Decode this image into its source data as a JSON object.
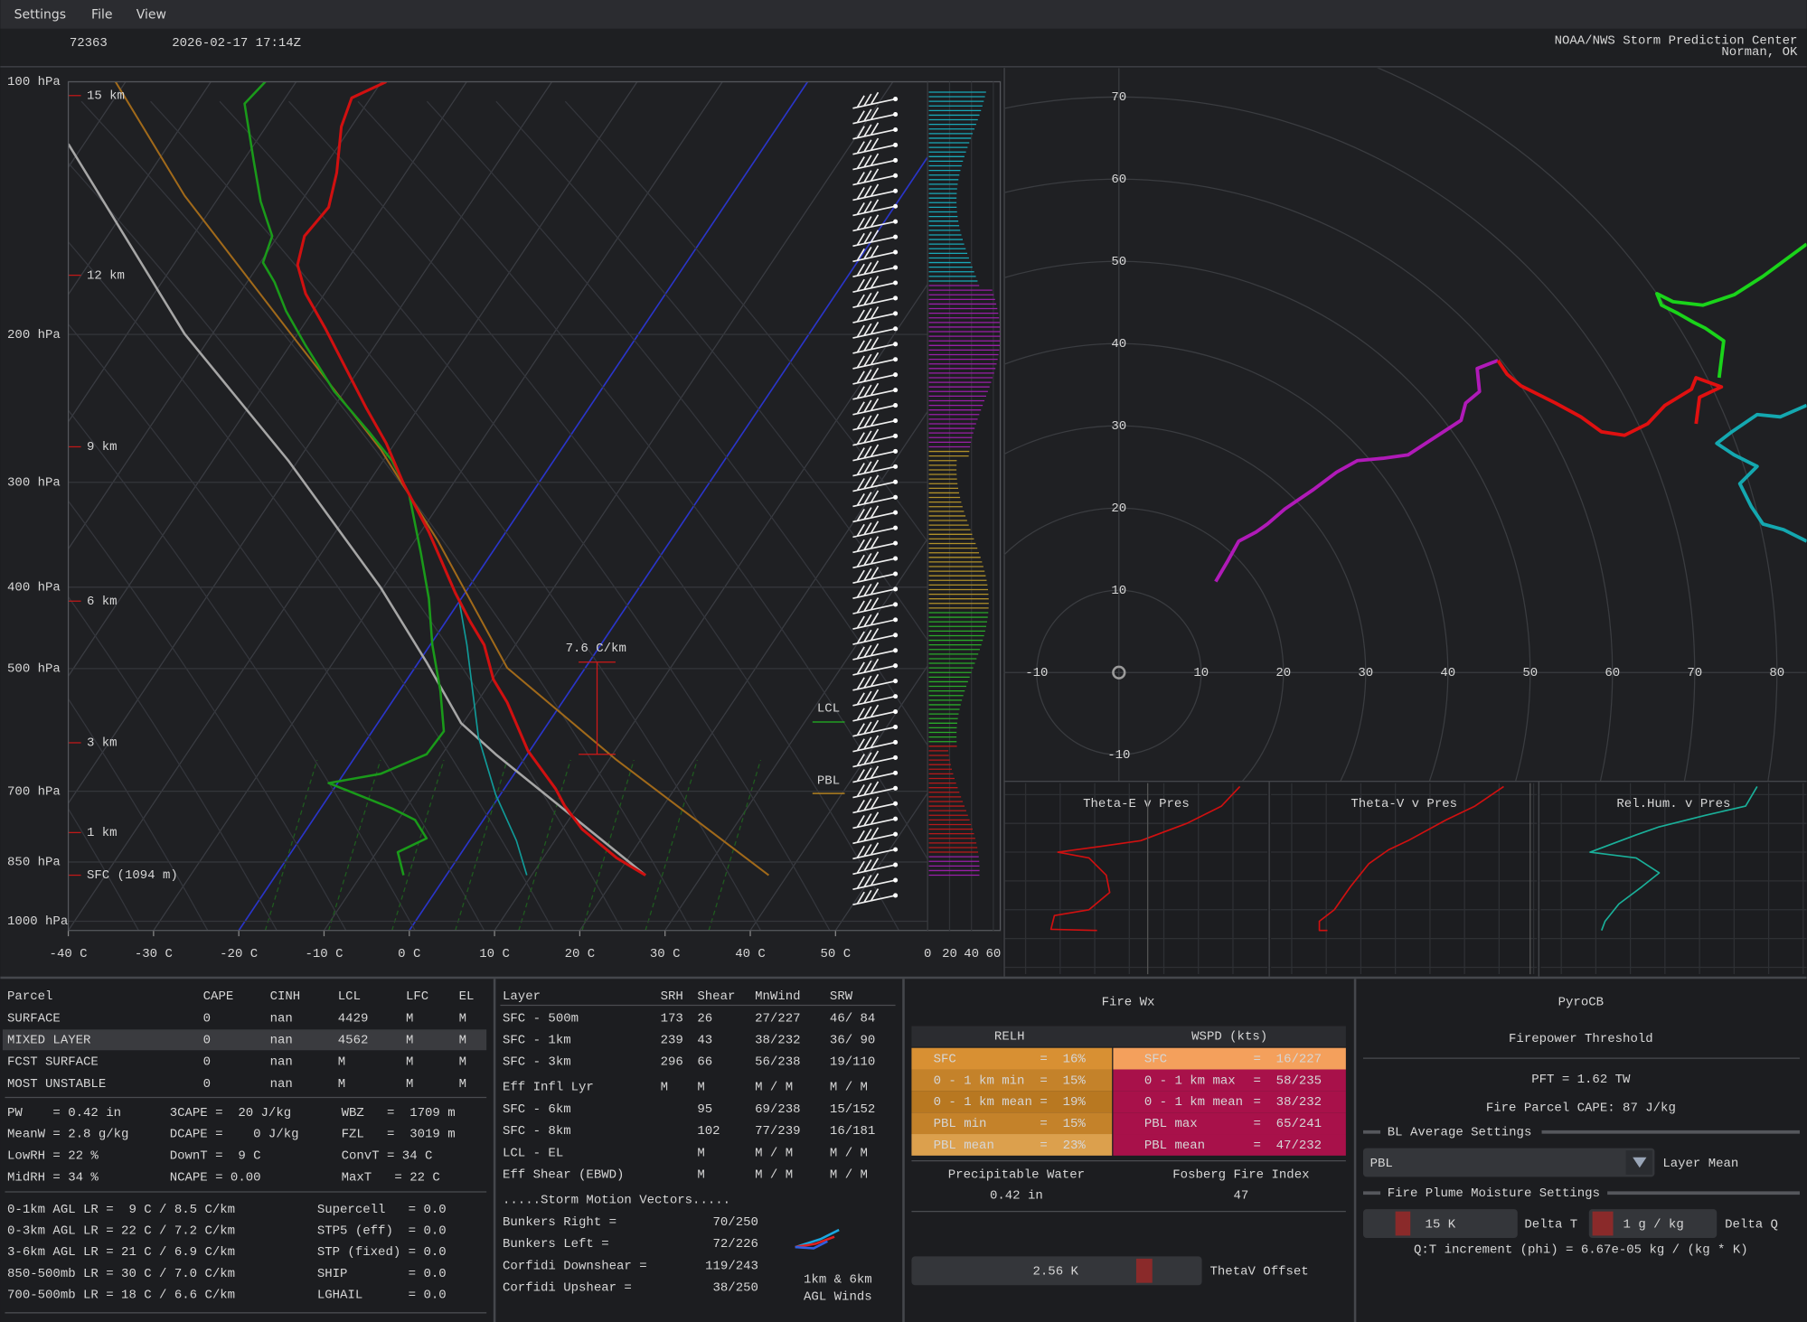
{
  "menu": [
    "Settings",
    "File",
    "View"
  ],
  "header": {
    "station": "72363",
    "time": "2026-02-17 17:14Z",
    "source": "NOAA/NWS Storm Prediction Center",
    "location": "Norman, OK"
  },
  "skewt": {
    "pressure_ticks": [
      {
        "value": 100,
        "label": "100 hPa"
      },
      {
        "value": 200,
        "label": "200 hPa"
      },
      {
        "value": 300,
        "label": "300 hPa"
      },
      {
        "value": 400,
        "label": "400 hPa"
      },
      {
        "value": 500,
        "label": "500 hPa"
      },
      {
        "value": 700,
        "label": "700 hPa"
      },
      {
        "value": 850,
        "label": "850 hPa"
      },
      {
        "value": 1000,
        "label": "1000 hPa"
      }
    ],
    "temp_ticks": [
      {
        "value": -40,
        "label": "-40 C"
      },
      {
        "value": -30,
        "label": "-30 C"
      },
      {
        "value": -20,
        "label": "-20 C"
      },
      {
        "value": -10,
        "label": "-10 C"
      },
      {
        "value": 0,
        "label": "0 C"
      },
      {
        "value": 10,
        "label": "10 C"
      },
      {
        "value": 20,
        "label": "20 C"
      },
      {
        "value": 30,
        "label": "30 C"
      },
      {
        "value": 40,
        "label": "40 C"
      },
      {
        "value": 50,
        "label": "50 C"
      }
    ],
    "height_labels": [
      "15 km",
      "12 km",
      "9 km",
      "6 km",
      "3 km",
      "1 km",
      "SFC (1094 m)"
    ],
    "lapse_rate_label": "7.6 C/km",
    "lcl_label": "LCL",
    "pbl_label": "PBL",
    "inset_ticks": [
      0,
      20,
      40,
      60
    ]
  },
  "hodograph": {
    "xticks": [
      -10,
      10,
      20,
      30,
      40,
      50,
      60,
      70,
      80
    ],
    "yticks": [
      70,
      60,
      50,
      40,
      30,
      20,
      10,
      -10
    ]
  },
  "profiles": [
    "Theta-E v Pres",
    "Theta-V v Pres",
    "Rel.Hum. v Pres"
  ],
  "parcel_table": {
    "header": [
      "Parcel",
      "CAPE",
      "CINH",
      "LCL",
      "LFC",
      "EL"
    ],
    "rows": [
      [
        "SURFACE",
        "0",
        "nan",
        "4429",
        "M",
        "M"
      ],
      [
        "MIXED LAYER",
        "0",
        "nan",
        "4562",
        "M",
        "M"
      ],
      [
        "FCST SURFACE",
        "0",
        "nan",
        "M",
        "M",
        "M"
      ],
      [
        "MOST UNSTABLE",
        "0",
        "nan",
        "M",
        "M",
        "M"
      ]
    ]
  },
  "thermo_stats": [
    [
      "PW    = 0.42 in",
      "3CAPE =  20 J/kg",
      "WBZ   =  1709 m"
    ],
    [
      "MeanW = 2.8 g/kg",
      "DCAPE =    0 J/kg",
      "FZL   =  3019 m"
    ],
    [
      "LowRH = 22 %",
      "DownT =  9 C",
      "ConvT = 34 C"
    ],
    [
      "MidRH = 34 %",
      "NCAPE = 0.00",
      "MaxT   = 22 C"
    ]
  ],
  "lapse_rates": [
    [
      "0-1km AGL LR =  9 C / 8.5 C/km",
      "Supercell   = 0.0"
    ],
    [
      "0-3km AGL LR = 22 C / 7.2 C/km",
      "STP5 (eff)  = 0.0"
    ],
    [
      "3-6km AGL LR = 21 C / 6.9 C/km",
      "STP (fixed) = 0.0"
    ],
    [
      "850-500mb LR = 30 C / 7.0 C/km",
      "SHIP        = 0.0"
    ],
    [
      "700-500mb LR = 18 C / 6.6 C/km",
      "LGHAIL      = 0.0"
    ]
  ],
  "kinematics": {
    "header": [
      "Layer",
      "SRH",
      "Shear",
      "MnWind",
      "SRW"
    ],
    "rows": [
      [
        "SFC - 500m",
        "173",
        "26",
        "27/227",
        "46/ 84"
      ],
      [
        "SFC - 1km",
        "239",
        "43",
        "38/232",
        "36/ 90"
      ],
      [
        "SFC - 3km",
        "296",
        "66",
        "56/238",
        "19/110"
      ],
      [
        "Eff Infl Lyr",
        "M",
        "M",
        "M / M",
        "M / M"
      ],
      [
        "SFC - 6km",
        null,
        "95",
        "69/238",
        "15/152"
      ],
      [
        "SFC - 8km",
        null,
        "102",
        "77/239",
        "16/181"
      ],
      [
        "LCL - EL",
        null,
        "M",
        "M / M",
        "M / M"
      ],
      [
        "Eff Shear (EBWD)",
        null,
        "M",
        "M / M",
        "M / M"
      ]
    ],
    "storm_motion_title": ".....Storm Motion Vectors.....",
    "storm_motion": [
      [
        "Bunkers Right =",
        "70/250"
      ],
      [
        "Bunkers Left =",
        "72/226"
      ],
      [
        "Corfidi Downshear =",
        "119/243"
      ],
      [
        "Corfidi Upshear =",
        "38/250"
      ]
    ],
    "winds_note": [
      "1km & 6km",
      "AGL Winds"
    ]
  },
  "fire_wx": {
    "title": "Fire Wx",
    "relh_header": "RELH",
    "wspd_header": "WSPD (kts)",
    "relh": [
      [
        "SFC",
        "=  16%"
      ],
      [
        "0 - 1 km min",
        "=  15%"
      ],
      [
        "0 - 1 km mean",
        "=  19%"
      ],
      [
        "PBL min",
        "=  15%"
      ],
      [
        "PBL mean",
        "=  23%"
      ]
    ],
    "wspd": [
      [
        "SFC",
        "=  16/227"
      ],
      [
        "0 - 1 km max",
        "=  58/235"
      ],
      [
        "0 - 1 km mean",
        "=  38/232"
      ],
      [
        "PBL max",
        "=  65/241"
      ],
      [
        "PBL mean",
        "=  47/232"
      ]
    ],
    "pw_label": "Precipitable Water",
    "pw_value": "0.42 in",
    "fosberg_label": "Fosberg Fire Index",
    "fosberg_value": "47",
    "thetav_value": "2.56 K",
    "thetav_label": "ThetaV Offset"
  },
  "pyrocb": {
    "title": [
      "PyroCB",
      "Firepower Threshold"
    ],
    "pft": "PFT = 1.62 TW",
    "cape": "Fire Parcel CAPE: 87 J/kg",
    "bl_section": "BL Average Settings",
    "bl_choice": "PBL",
    "bl_label": "Layer Mean",
    "plume_section": "Fire Plume Moisture Settings",
    "delta_t_value": "15 K",
    "delta_t_label": "Delta T",
    "delta_q_value": "1 g / kg",
    "delta_q_label": "Delta Q",
    "phi": "Q:T increment (phi) = 6.67e-05 kg / (kg * K)"
  }
}
